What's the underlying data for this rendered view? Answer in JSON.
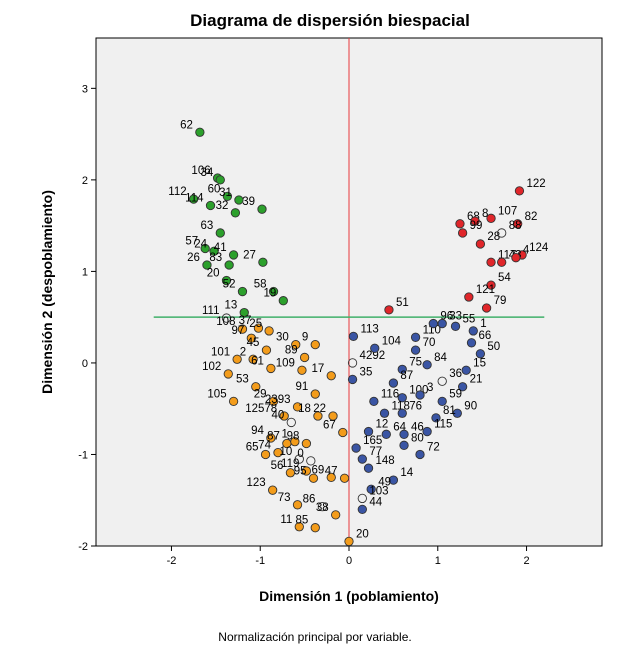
{
  "chart_data": {
    "type": "scatter",
    "title": "Diagrama de dispersión biespacial",
    "xlabel": "Dimensión 1 (poblamiento)",
    "ylabel": "Dimensión 2 (despoblamiento)",
    "footnote": "Normalización principal por variable.",
    "xlim": [
      -2.85,
      2.85
    ],
    "ylim": [
      -2.0,
      3.55
    ],
    "xticks": [
      -2,
      -1,
      0,
      1,
      2
    ],
    "yticks": [
      -2,
      -1,
      0,
      1,
      2,
      3
    ],
    "ref_lines": {
      "vertical_x": 0,
      "horizontal_y": 0.5
    },
    "colors": {
      "green": "#2ca02c",
      "orange": "#f39c1b",
      "blue": "#3a55a4",
      "red": "#e0262a",
      "vline": "#e8383d",
      "hline": "#40b06a",
      "plot_bg": "#f0f0f0"
    },
    "points": [
      {
        "label": "62",
        "x": -1.68,
        "y": 2.52,
        "group": "green"
      },
      {
        "label": "106",
        "x": -1.48,
        "y": 2.02,
        "group": "green"
      },
      {
        "label": "34",
        "x": -1.45,
        "y": 2.0,
        "group": "green"
      },
      {
        "label": "112",
        "x": -1.75,
        "y": 1.79,
        "group": "green"
      },
      {
        "label": "60",
        "x": -1.37,
        "y": 1.82,
        "group": "green"
      },
      {
        "label": "31",
        "x": -1.24,
        "y": 1.78,
        "group": "green"
      },
      {
        "label": "114",
        "x": -1.56,
        "y": 1.72,
        "group": "green"
      },
      {
        "label": "39",
        "x": -0.98,
        "y": 1.68,
        "group": "green"
      },
      {
        "label": "32",
        "x": -1.28,
        "y": 1.64,
        "group": "green"
      },
      {
        "label": "63",
        "x": -1.45,
        "y": 1.42,
        "group": "green"
      },
      {
        "label": "57",
        "x": -1.62,
        "y": 1.25,
        "group": "green"
      },
      {
        "label": "24",
        "x": -1.52,
        "y": 1.22,
        "group": "green"
      },
      {
        "label": "41",
        "x": -1.3,
        "y": 1.18,
        "group": "green"
      },
      {
        "label": "27",
        "x": -0.97,
        "y": 1.1,
        "group": "green"
      },
      {
        "label": "26",
        "x": -1.6,
        "y": 1.07,
        "group": "green"
      },
      {
        "label": "83",
        "x": -1.35,
        "y": 1.07,
        "group": "green"
      },
      {
        "label": "20",
        "x": -1.38,
        "y": 0.9,
        "group": "green"
      },
      {
        "label": "52",
        "x": -1.2,
        "y": 0.78,
        "group": "green"
      },
      {
        "label": "58",
        "x": -0.85,
        "y": 0.78,
        "group": "green"
      },
      {
        "label": "19",
        "x": -0.74,
        "y": 0.68,
        "group": "green"
      },
      {
        "label": "13",
        "x": -1.18,
        "y": 0.55,
        "group": "green"
      },
      {
        "label": "111",
        "x": -1.38,
        "y": 0.49,
        "group": "open"
      },
      {
        "label": "108",
        "x": -1.2,
        "y": 0.37,
        "group": "orange"
      },
      {
        "label": "37",
        "x": -1.02,
        "y": 0.38,
        "group": "orange"
      },
      {
        "label": "25",
        "x": -0.9,
        "y": 0.35,
        "group": "orange"
      },
      {
        "label": "97",
        "x": -1.1,
        "y": 0.27,
        "group": "orange"
      },
      {
        "label": "30",
        "x": -0.6,
        "y": 0.2,
        "group": "orange"
      },
      {
        "label": "9",
        "x": -0.38,
        "y": 0.2,
        "group": "orange"
      },
      {
        "label": "45",
        "x": -0.93,
        "y": 0.14,
        "group": "orange"
      },
      {
        "label": "101",
        "x": -1.26,
        "y": 0.04,
        "group": "orange"
      },
      {
        "label": "2",
        "x": -1.08,
        "y": 0.04,
        "group": "orange"
      },
      {
        "label": "89",
        "x": -0.5,
        "y": 0.06,
        "group": "orange"
      },
      {
        "label": "102",
        "x": -1.36,
        "y": -0.12,
        "group": "orange"
      },
      {
        "label": "61",
        "x": -0.88,
        "y": -0.06,
        "group": "orange"
      },
      {
        "label": "109",
        "x": -0.53,
        "y": -0.08,
        "group": "orange"
      },
      {
        "label": "17",
        "x": -0.2,
        "y": -0.14,
        "group": "orange"
      },
      {
        "label": "53",
        "x": -1.05,
        "y": -0.26,
        "group": "orange"
      },
      {
        "label": "91",
        "x": -0.38,
        "y": -0.34,
        "group": "orange"
      },
      {
        "label": "29",
        "x": -0.85,
        "y": -0.42,
        "group": "orange"
      },
      {
        "label": "105",
        "x": -1.3,
        "y": -0.42,
        "group": "orange"
      },
      {
        "label": "2393",
        "x": -0.58,
        "y": -0.48,
        "group": "orange"
      },
      {
        "label": "12578",
        "x": -0.73,
        "y": -0.58,
        "group": "orange"
      },
      {
        "label": "18",
        "x": -0.35,
        "y": -0.58,
        "group": "orange"
      },
      {
        "label": "22",
        "x": -0.18,
        "y": -0.58,
        "group": "orange"
      },
      {
        "label": "40",
        "x": -0.65,
        "y": -0.65,
        "group": "open"
      },
      {
        "label": "94",
        "x": -0.88,
        "y": -0.82,
        "group": "orange"
      },
      {
        "label": "67",
        "x": -0.07,
        "y": -0.76,
        "group": "orange"
      },
      {
        "label": "87",
        "x": -0.7,
        "y": -0.88,
        "group": "orange"
      },
      {
        "label": "1",
        "x": -0.61,
        "y": -0.86,
        "group": "orange"
      },
      {
        "label": "98",
        "x": -0.48,
        "y": -0.88,
        "group": "orange"
      },
      {
        "label": "65",
        "x": -0.94,
        "y": -1.0,
        "group": "orange"
      },
      {
        "label": "74",
        "x": -0.8,
        "y": -0.98,
        "group": "orange"
      },
      {
        "label": "10",
        "x": -0.56,
        "y": -1.05,
        "group": "open"
      },
      {
        "label": "0",
        "x": -0.43,
        "y": -1.07,
        "group": "open"
      },
      {
        "label": "119",
        "x": -0.48,
        "y": -1.18,
        "group": "orange"
      },
      {
        "label": "56",
        "x": -0.66,
        "y": -1.2,
        "group": "orange"
      },
      {
        "label": "95",
        "x": -0.4,
        "y": -1.26,
        "group": "orange"
      },
      {
        "label": "69",
        "x": -0.2,
        "y": -1.25,
        "group": "orange"
      },
      {
        "label": "47",
        "x": -0.05,
        "y": -1.26,
        "group": "orange"
      },
      {
        "label": "123",
        "x": -0.86,
        "y": -1.39,
        "group": "orange"
      },
      {
        "label": "73",
        "x": -0.58,
        "y": -1.55,
        "group": "orange"
      },
      {
        "label": "86",
        "x": -0.3,
        "y": -1.57,
        "group": "open"
      },
      {
        "label": "11",
        "x": -0.56,
        "y": -1.79,
        "group": "orange"
      },
      {
        "label": "85",
        "x": -0.38,
        "y": -1.8,
        "group": "orange"
      },
      {
        "label": "38",
        "x": -0.15,
        "y": -1.66,
        "group": "orange"
      },
      {
        "label": "20",
        "x": 0.0,
        "y": -1.95,
        "group": "orange"
      },
      {
        "label": "113",
        "x": 0.05,
        "y": 0.29,
        "group": "blue"
      },
      {
        "label": "4292",
        "x": 0.04,
        "y": 0.0,
        "group": "open"
      },
      {
        "label": "35",
        "x": 0.04,
        "y": -0.18,
        "group": "blue"
      },
      {
        "label": "104",
        "x": 0.29,
        "y": 0.16,
        "group": "blue"
      },
      {
        "label": "110",
        "x": 0.75,
        "y": 0.28,
        "group": "blue"
      },
      {
        "label": "96",
        "x": 0.95,
        "y": 0.43,
        "group": "blue"
      },
      {
        "label": "33",
        "x": 1.05,
        "y": 0.43,
        "group": "blue"
      },
      {
        "label": "55",
        "x": 1.2,
        "y": 0.4,
        "group": "blue"
      },
      {
        "label": "1",
        "x": 1.4,
        "y": 0.35,
        "group": "blue"
      },
      {
        "label": "75",
        "x": 0.6,
        "y": -0.07,
        "group": "blue"
      },
      {
        "label": "70",
        "x": 0.75,
        "y": 0.14,
        "group": "blue"
      },
      {
        "label": "66",
        "x": 1.38,
        "y": 0.22,
        "group": "blue"
      },
      {
        "label": "50",
        "x": 1.48,
        "y": 0.1,
        "group": "blue"
      },
      {
        "label": "84",
        "x": 0.88,
        "y": -0.02,
        "group": "blue"
      },
      {
        "label": "15",
        "x": 1.32,
        "y": -0.08,
        "group": "blue"
      },
      {
        "label": "36",
        "x": 1.05,
        "y": -0.2,
        "group": "open"
      },
      {
        "label": "87",
        "x": 0.5,
        "y": -0.22,
        "group": "blue"
      },
      {
        "label": "21",
        "x": 1.28,
        "y": -0.26,
        "group": "blue"
      },
      {
        "label": "116",
        "x": 0.28,
        "y": -0.42,
        "group": "blue"
      },
      {
        "label": "100",
        "x": 0.6,
        "y": -0.38,
        "group": "blue"
      },
      {
        "label": "3",
        "x": 0.8,
        "y": -0.35,
        "group": "blue"
      },
      {
        "label": "59",
        "x": 1.05,
        "y": -0.42,
        "group": "blue"
      },
      {
        "label": "118",
        "x": 0.4,
        "y": -0.55,
        "group": "blue"
      },
      {
        "label": "76",
        "x": 0.6,
        "y": -0.55,
        "group": "blue"
      },
      {
        "label": "90",
        "x": 1.22,
        "y": -0.55,
        "group": "blue"
      },
      {
        "label": "12",
        "x": 0.22,
        "y": -0.75,
        "group": "blue"
      },
      {
        "label": "81",
        "x": 0.98,
        "y": -0.6,
        "group": "blue"
      },
      {
        "label": "64",
        "x": 0.42,
        "y": -0.78,
        "group": "blue"
      },
      {
        "label": "46",
        "x": 0.62,
        "y": -0.78,
        "group": "blue"
      },
      {
        "label": "115",
        "x": 0.88,
        "y": -0.75,
        "group": "blue"
      },
      {
        "label": "80",
        "x": 0.62,
        "y": -0.9,
        "group": "blue"
      },
      {
        "label": "165",
        "x": 0.08,
        "y": -0.93,
        "group": "blue"
      },
      {
        "label": "77",
        "x": 0.15,
        "y": -1.05,
        "group": "blue"
      },
      {
        "label": "72",
        "x": 0.8,
        "y": -1.0,
        "group": "blue"
      },
      {
        "label": "148",
        "x": 0.22,
        "y": -1.15,
        "group": "blue"
      },
      {
        "label": "14",
        "x": 0.5,
        "y": -1.28,
        "group": "blue"
      },
      {
        "label": "49",
        "x": 0.25,
        "y": -1.38,
        "group": "blue"
      },
      {
        "label": "44",
        "x": 0.15,
        "y": -1.6,
        "group": "blue"
      },
      {
        "label": "103",
        "x": 0.15,
        "y": -1.48,
        "group": "open"
      },
      {
        "label": "51",
        "x": 0.45,
        "y": 0.58,
        "group": "red"
      },
      {
        "label": "68",
        "x": 1.25,
        "y": 1.52,
        "group": "red"
      },
      {
        "label": "8",
        "x": 1.42,
        "y": 1.55,
        "group": "red"
      },
      {
        "label": "107",
        "x": 1.6,
        "y": 1.58,
        "group": "red"
      },
      {
        "label": "122",
        "x": 1.92,
        "y": 1.88,
        "group": "red"
      },
      {
        "label": "82",
        "x": 1.9,
        "y": 1.52,
        "group": "red"
      },
      {
        "label": "99",
        "x": 1.28,
        "y": 1.42,
        "group": "red"
      },
      {
        "label": "28",
        "x": 1.48,
        "y": 1.3,
        "group": "red"
      },
      {
        "label": "88",
        "x": 1.72,
        "y": 1.42,
        "group": "open"
      },
      {
        "label": "124",
        "x": 1.95,
        "y": 1.18,
        "group": "red"
      },
      {
        "label": "117",
        "x": 1.6,
        "y": 1.1,
        "group": "red"
      },
      {
        "label": "43",
        "x": 1.72,
        "y": 1.1,
        "group": "red"
      },
      {
        "label": "4",
        "x": 1.88,
        "y": 1.15,
        "group": "red"
      },
      {
        "label": "54",
        "x": 1.6,
        "y": 0.85,
        "group": "red"
      },
      {
        "label": "121",
        "x": 1.35,
        "y": 0.72,
        "group": "red"
      },
      {
        "label": "79",
        "x": 1.55,
        "y": 0.6,
        "group": "red"
      }
    ]
  }
}
